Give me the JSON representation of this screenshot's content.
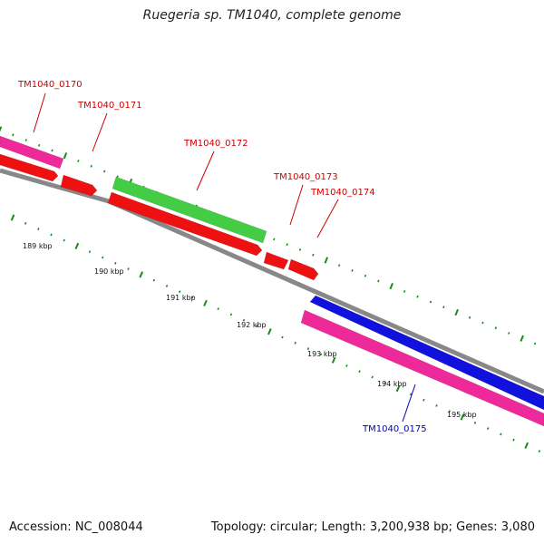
{
  "title": "Ruegeria sp. TM1040, complete genome",
  "footer": {
    "accession": "Accession: NC_008044",
    "topology": "Topology: circular; Length: 3,200,938 bp; Genes: 3,080"
  },
  "colors": {
    "backbone": "#888888",
    "tick": "#1a8a1a",
    "red_label": "#cc0000",
    "blue_label": "#0000bb"
  },
  "scale_labels": [
    "189 kbp",
    "190 kbp",
    "191 kbp",
    "192 kbp",
    "193 kbp",
    "194 kbp",
    "195 kbp"
  ],
  "genes": [
    {
      "name": "TM1040_0170",
      "color": "#ee2a9a",
      "label_color": "#cc0000"
    },
    {
      "name": "TM1040_0171",
      "color": "#ee1111",
      "label_color": "#cc0000"
    },
    {
      "name": "TM1040_0172",
      "color": "#44cc44",
      "label_color": "#cc0000"
    },
    {
      "name": "TM1040_0173",
      "color": "#ee1111",
      "label_color": "#cc0000"
    },
    {
      "name": "TM1040_0174",
      "color": "#ee1111",
      "label_color": "#cc0000"
    },
    {
      "name": "TM1040_0175",
      "color": "#1111dd",
      "label_color": "#0000bb"
    }
  ]
}
